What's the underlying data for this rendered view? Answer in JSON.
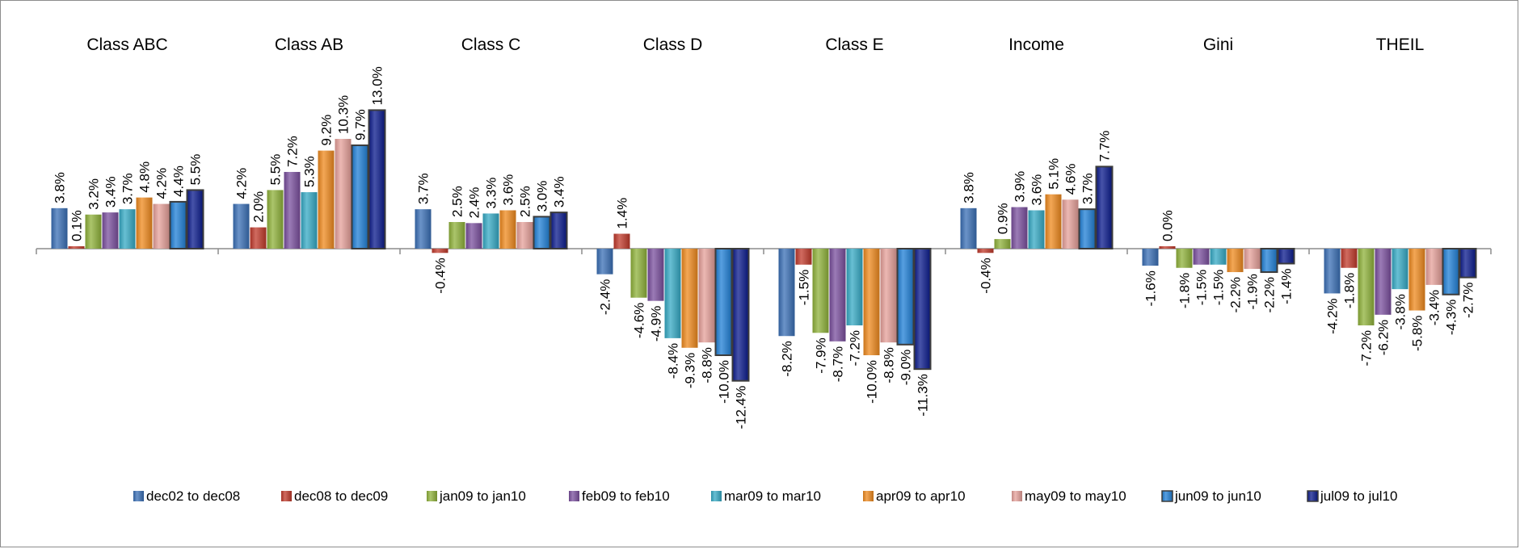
{
  "chart_data": {
    "type": "bar",
    "categories": [
      "Class ABC",
      "Class AB",
      "Class C",
      "Class D",
      "Class E",
      "Income",
      "Gini",
      "THEIL"
    ],
    "series": [
      {
        "name": "dec02 to dec08",
        "color": "#3a6fb5",
        "values": [
          3.8,
          4.2,
          3.7,
          -2.4,
          -8.2,
          3.8,
          -1.6,
          -4.2
        ]
      },
      {
        "name": "dec08 to dec09",
        "color": "#c0392b",
        "values": [
          0.1,
          2.0,
          -0.4,
          1.4,
          -1.5,
          -0.4,
          0.0,
          -1.8
        ]
      },
      {
        "name": "jan09 to jan10",
        "color": "#8fb23a",
        "values": [
          3.2,
          5.5,
          2.5,
          -4.6,
          -7.9,
          0.9,
          -1.8,
          -7.2
        ]
      },
      {
        "name": "feb09 to feb10",
        "color": "#7a4f9e",
        "values": [
          3.4,
          7.2,
          2.4,
          -4.9,
          -8.7,
          3.9,
          -1.5,
          -6.2
        ]
      },
      {
        "name": "mar09 to mar10",
        "color": "#35a9c4",
        "values": [
          3.7,
          5.3,
          3.3,
          -8.4,
          -7.2,
          3.6,
          -1.5,
          -3.8
        ]
      },
      {
        "name": "apr09 to apr10",
        "color": "#ef8a1e",
        "values": [
          4.8,
          9.2,
          3.6,
          -9.3,
          -10.0,
          5.1,
          -2.2,
          -5.8
        ]
      },
      {
        "name": "may09 to may10",
        "color": "#e6a09a",
        "values": [
          4.2,
          10.3,
          2.5,
          -8.8,
          -8.8,
          4.6,
          -1.9,
          -3.4
        ]
      },
      {
        "name": "jun09 to jun10",
        "color": "#1f7fd6",
        "values": [
          4.4,
          9.7,
          3.0,
          -10.0,
          -9.0,
          3.7,
          -2.2,
          -4.3
        ]
      },
      {
        "name": "jul09 to jul10",
        "color": "#0a1a8c",
        "values": [
          5.5,
          13.0,
          3.4,
          -12.4,
          -11.3,
          7.7,
          -1.4,
          -2.7
        ]
      }
    ],
    "value_format": "percent_1dp",
    "ylim": [
      -14,
      14
    ],
    "legend_position": "bottom",
    "grid": false
  }
}
